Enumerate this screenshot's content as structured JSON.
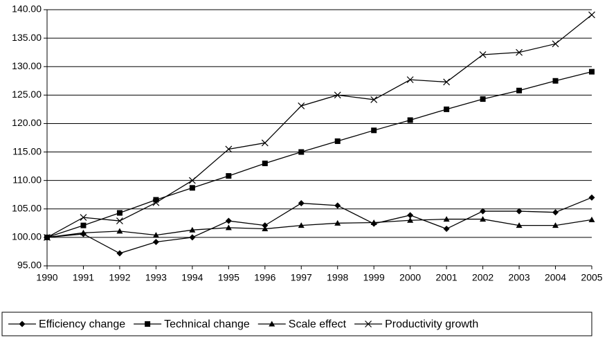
{
  "chart_data": {
    "type": "line",
    "x": [
      1990,
      1991,
      1992,
      1993,
      1994,
      1995,
      1996,
      1997,
      1998,
      1999,
      2000,
      2001,
      2002,
      2003,
      2004,
      2005
    ],
    "series": [
      {
        "name": "Efficiency change",
        "color": "#000000",
        "marker": "diamond",
        "values": [
          100,
          100.6,
          97.2,
          99.2,
          100,
          102.9,
          102.1,
          106,
          105.6,
          102.4,
          103.9,
          101.5,
          104.6,
          104.6,
          104.4,
          107
        ]
      },
      {
        "name": "Technical change",
        "color": "#000000",
        "marker": "square",
        "values": [
          100,
          102.1,
          104.3,
          106.6,
          108.7,
          110.8,
          113,
          115,
          116.9,
          118.8,
          120.6,
          122.5,
          124.3,
          125.8,
          127.5,
          129.1
        ]
      },
      {
        "name": "Scale effect",
        "color": "#000000",
        "marker": "triangle",
        "values": [
          100,
          100.8,
          101.1,
          100.4,
          101.3,
          101.7,
          101.5,
          102.1,
          102.5,
          102.6,
          103,
          103.2,
          103.2,
          102.1,
          102.1,
          103.1
        ]
      },
      {
        "name": "Productivity growth",
        "color": "#000000",
        "marker": "x",
        "values": [
          100,
          103.5,
          102.9,
          106.1,
          110,
          115.5,
          116.6,
          123.1,
          125,
          124.2,
          127.7,
          127.3,
          132.1,
          132.5,
          134,
          139.1
        ]
      }
    ],
    "xlim": [
      1990,
      2005
    ],
    "xticks": [
      1990,
      1991,
      1992,
      1993,
      1994,
      1995,
      1996,
      1997,
      1998,
      1999,
      2000,
      2001,
      2002,
      2003,
      2004,
      2005
    ],
    "ylim": [
      95,
      140
    ],
    "yticks": [
      {
        "value": 95,
        "label": "95.00"
      },
      {
        "value": 100,
        "label": "100.00"
      },
      {
        "value": 105,
        "label": "105.00"
      },
      {
        "value": 110,
        "label": "110.00"
      },
      {
        "value": 115,
        "label": "115.00"
      },
      {
        "value": 120,
        "label": "120.00"
      },
      {
        "value": 125,
        "label": "125.00"
      },
      {
        "value": 130,
        "label": "130.00"
      },
      {
        "value": 135,
        "label": "135.00"
      },
      {
        "value": 140,
        "label": "140.00"
      }
    ],
    "grid": true,
    "legend": "bottom"
  }
}
